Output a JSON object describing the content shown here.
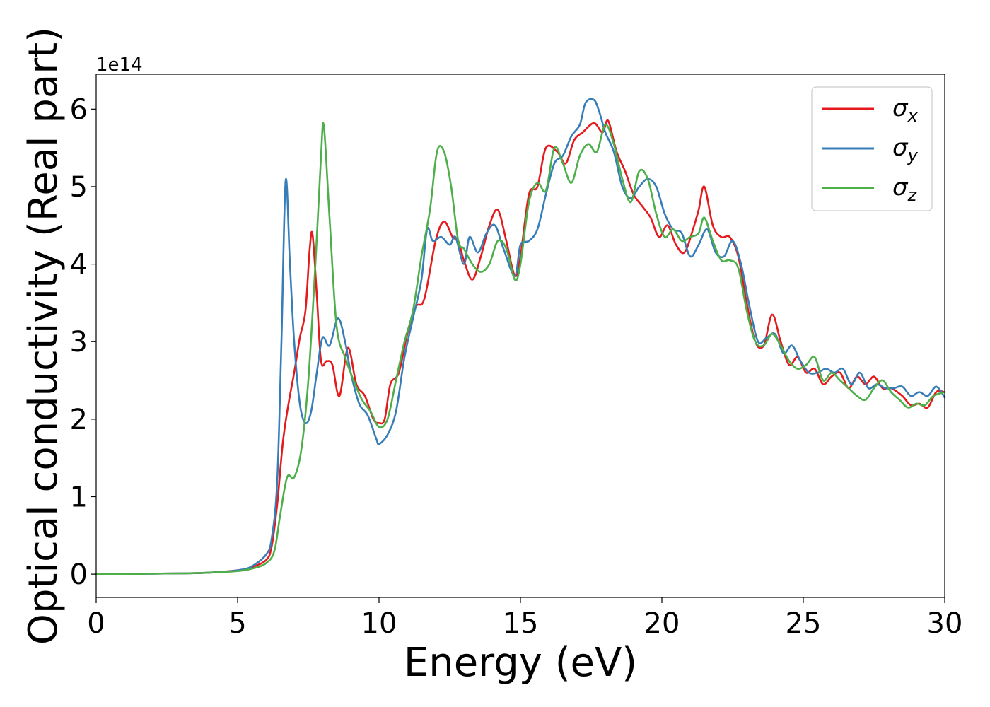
{
  "chart_data": {
    "type": "line",
    "xlabel": "Energy (eV)",
    "ylabel": "Optical conductivity (Real part)",
    "y_offset_label": "1e14",
    "xlim": [
      0,
      30
    ],
    "ylim": [
      -0.3,
      6.45
    ],
    "x_ticks": [
      0,
      5,
      10,
      15,
      20,
      25,
      30
    ],
    "x_tick_labels": [
      "0",
      "5",
      "10",
      "15",
      "20",
      "25",
      "30"
    ],
    "y_ticks": [
      0,
      1,
      2,
      3,
      4,
      5,
      6
    ],
    "y_tick_labels": [
      "0",
      "1",
      "2",
      "3",
      "4",
      "5",
      "6"
    ],
    "grid": false,
    "legend_position": "top-right",
    "series": [
      {
        "name": "σ",
        "subscript": "x",
        "color": "#e41a1c",
        "points": [
          [
            0,
            0
          ],
          [
            3,
            0.01
          ],
          [
            4,
            0.02
          ],
          [
            5,
            0.05
          ],
          [
            5.5,
            0.09
          ],
          [
            6,
            0.18
          ],
          [
            6.2,
            0.35
          ],
          [
            6.4,
            0.9
          ],
          [
            6.6,
            1.7
          ],
          [
            6.8,
            2.2
          ],
          [
            7.0,
            2.6
          ],
          [
            7.2,
            3.05
          ],
          [
            7.4,
            3.4
          ],
          [
            7.55,
            4.2
          ],
          [
            7.65,
            4.38
          ],
          [
            7.8,
            3.6
          ],
          [
            7.95,
            2.75
          ],
          [
            8.15,
            2.75
          ],
          [
            8.35,
            2.7
          ],
          [
            8.6,
            2.3
          ],
          [
            8.9,
            2.92
          ],
          [
            9.2,
            2.45
          ],
          [
            9.5,
            2.3
          ],
          [
            9.8,
            2.0
          ],
          [
            10.0,
            1.95
          ],
          [
            10.2,
            2.0
          ],
          [
            10.4,
            2.45
          ],
          [
            10.7,
            2.6
          ],
          [
            11.0,
            3.1
          ],
          [
            11.3,
            3.45
          ],
          [
            11.6,
            3.55
          ],
          [
            12.0,
            4.3
          ],
          [
            12.3,
            4.55
          ],
          [
            12.6,
            4.35
          ],
          [
            12.8,
            4.3
          ],
          [
            13.0,
            4.05
          ],
          [
            13.3,
            3.8
          ],
          [
            13.6,
            4.1
          ],
          [
            13.9,
            4.5
          ],
          [
            14.2,
            4.7
          ],
          [
            14.5,
            4.3
          ],
          [
            14.8,
            3.85
          ],
          [
            15.0,
            4.1
          ],
          [
            15.3,
            4.9
          ],
          [
            15.6,
            5.0
          ],
          [
            15.9,
            5.5
          ],
          [
            16.3,
            5.45
          ],
          [
            16.6,
            5.3
          ],
          [
            16.9,
            5.6
          ],
          [
            17.2,
            5.7
          ],
          [
            17.6,
            5.82
          ],
          [
            17.9,
            5.7
          ],
          [
            18.1,
            5.85
          ],
          [
            18.4,
            5.45
          ],
          [
            18.7,
            5.2
          ],
          [
            19.0,
            4.9
          ],
          [
            19.3,
            4.75
          ],
          [
            19.6,
            4.6
          ],
          [
            19.9,
            4.35
          ],
          [
            20.2,
            4.5
          ],
          [
            20.5,
            4.25
          ],
          [
            20.8,
            4.15
          ],
          [
            21.1,
            4.45
          ],
          [
            21.3,
            4.7
          ],
          [
            21.5,
            5.0
          ],
          [
            21.8,
            4.5
          ],
          [
            22.1,
            4.35
          ],
          [
            22.4,
            4.35
          ],
          [
            22.7,
            4.1
          ],
          [
            23.0,
            3.5
          ],
          [
            23.3,
            3.0
          ],
          [
            23.6,
            2.95
          ],
          [
            23.9,
            3.35
          ],
          [
            24.2,
            3.0
          ],
          [
            24.5,
            2.7
          ],
          [
            24.8,
            2.8
          ],
          [
            25.1,
            2.6
          ],
          [
            25.4,
            2.65
          ],
          [
            25.7,
            2.45
          ],
          [
            26.0,
            2.55
          ],
          [
            26.3,
            2.6
          ],
          [
            26.6,
            2.4
          ],
          [
            26.9,
            2.55
          ],
          [
            27.2,
            2.45
          ],
          [
            27.5,
            2.55
          ],
          [
            27.8,
            2.4
          ],
          [
            28.1,
            2.4
          ],
          [
            28.5,
            2.3
          ],
          [
            28.8,
            2.18
          ],
          [
            29.1,
            2.2
          ],
          [
            29.4,
            2.15
          ],
          [
            29.7,
            2.35
          ],
          [
            30.0,
            2.35
          ]
        ]
      },
      {
        "name": "σ",
        "subscript": "y",
        "color": "#377eb8",
        "points": [
          [
            0,
            0
          ],
          [
            3,
            0.01
          ],
          [
            4,
            0.02
          ],
          [
            5,
            0.05
          ],
          [
            5.5,
            0.1
          ],
          [
            6,
            0.25
          ],
          [
            6.2,
            0.45
          ],
          [
            6.4,
            1.2
          ],
          [
            6.55,
            3.0
          ],
          [
            6.7,
            5.08
          ],
          [
            6.85,
            4.0
          ],
          [
            7.0,
            3.0
          ],
          [
            7.2,
            2.2
          ],
          [
            7.4,
            1.95
          ],
          [
            7.6,
            2.1
          ],
          [
            7.8,
            2.6
          ],
          [
            8.0,
            3.05
          ],
          [
            8.25,
            2.95
          ],
          [
            8.55,
            3.3
          ],
          [
            8.8,
            3.0
          ],
          [
            9.0,
            2.6
          ],
          [
            9.3,
            2.2
          ],
          [
            9.6,
            2.05
          ],
          [
            9.9,
            1.75
          ],
          [
            10.0,
            1.68
          ],
          [
            10.3,
            1.8
          ],
          [
            10.6,
            2.1
          ],
          [
            10.9,
            2.8
          ],
          [
            11.2,
            3.3
          ],
          [
            11.5,
            3.8
          ],
          [
            11.7,
            4.45
          ],
          [
            11.9,
            4.3
          ],
          [
            12.2,
            4.35
          ],
          [
            12.5,
            4.25
          ],
          [
            12.7,
            4.35
          ],
          [
            13.0,
            4.0
          ],
          [
            13.2,
            4.35
          ],
          [
            13.5,
            4.15
          ],
          [
            13.8,
            4.4
          ],
          [
            14.1,
            4.5
          ],
          [
            14.4,
            4.2
          ],
          [
            14.8,
            3.85
          ],
          [
            15.0,
            4.25
          ],
          [
            15.3,
            4.3
          ],
          [
            15.6,
            4.45
          ],
          [
            15.9,
            4.9
          ],
          [
            16.2,
            5.3
          ],
          [
            16.5,
            5.4
          ],
          [
            16.8,
            5.65
          ],
          [
            17.1,
            5.8
          ],
          [
            17.3,
            6.08
          ],
          [
            17.6,
            6.12
          ],
          [
            17.8,
            5.95
          ],
          [
            18.0,
            5.7
          ],
          [
            18.3,
            5.45
          ],
          [
            18.6,
            5.0
          ],
          [
            18.9,
            4.85
          ],
          [
            19.2,
            5.0
          ],
          [
            19.5,
            5.1
          ],
          [
            19.8,
            5.0
          ],
          [
            20.1,
            4.65
          ],
          [
            20.4,
            4.45
          ],
          [
            20.7,
            4.4
          ],
          [
            21.0,
            4.1
          ],
          [
            21.3,
            4.25
          ],
          [
            21.6,
            4.45
          ],
          [
            21.9,
            4.15
          ],
          [
            22.2,
            4.1
          ],
          [
            22.5,
            4.3
          ],
          [
            22.8,
            4.0
          ],
          [
            23.1,
            3.45
          ],
          [
            23.4,
            3.0
          ],
          [
            23.7,
            3.05
          ],
          [
            24.0,
            3.1
          ],
          [
            24.3,
            2.85
          ],
          [
            24.6,
            2.95
          ],
          [
            24.9,
            2.75
          ],
          [
            25.2,
            2.6
          ],
          [
            25.5,
            2.6
          ],
          [
            25.8,
            2.65
          ],
          [
            26.1,
            2.6
          ],
          [
            26.4,
            2.65
          ],
          [
            26.7,
            2.45
          ],
          [
            27.0,
            2.6
          ],
          [
            27.3,
            2.4
          ],
          [
            27.6,
            2.45
          ],
          [
            27.9,
            2.4
          ],
          [
            28.2,
            2.4
          ],
          [
            28.5,
            2.42
          ],
          [
            28.8,
            2.3
          ],
          [
            29.1,
            2.35
          ],
          [
            29.4,
            2.3
          ],
          [
            29.7,
            2.42
          ],
          [
            30.0,
            2.28
          ]
        ]
      },
      {
        "name": "σ",
        "subscript": "z",
        "color": "#4daf4a",
        "points": [
          [
            0,
            0
          ],
          [
            3,
            0.01
          ],
          [
            4,
            0.02
          ],
          [
            5,
            0.04
          ],
          [
            5.5,
            0.07
          ],
          [
            6,
            0.14
          ],
          [
            6.3,
            0.3
          ],
          [
            6.5,
            0.75
          ],
          [
            6.75,
            1.25
          ],
          [
            7.0,
            1.25
          ],
          [
            7.25,
            1.6
          ],
          [
            7.5,
            2.5
          ],
          [
            7.75,
            4.0
          ],
          [
            7.95,
            5.4
          ],
          [
            8.05,
            5.78
          ],
          [
            8.25,
            4.6
          ],
          [
            8.5,
            3.2
          ],
          [
            8.8,
            2.8
          ],
          [
            9.1,
            2.5
          ],
          [
            9.4,
            2.25
          ],
          [
            9.7,
            2.1
          ],
          [
            10.0,
            1.9
          ],
          [
            10.3,
            2.0
          ],
          [
            10.6,
            2.5
          ],
          [
            10.9,
            3.0
          ],
          [
            11.2,
            3.4
          ],
          [
            11.5,
            4.1
          ],
          [
            11.8,
            4.7
          ],
          [
            12.05,
            5.45
          ],
          [
            12.3,
            5.45
          ],
          [
            12.55,
            5.0
          ],
          [
            12.8,
            4.3
          ],
          [
            13.0,
            4.2
          ],
          [
            13.3,
            4.0
          ],
          [
            13.6,
            3.9
          ],
          [
            13.9,
            4.0
          ],
          [
            14.2,
            4.3
          ],
          [
            14.5,
            4.2
          ],
          [
            14.8,
            3.8
          ],
          [
            15.0,
            4.0
          ],
          [
            15.3,
            4.8
          ],
          [
            15.6,
            5.05
          ],
          [
            15.9,
            4.95
          ],
          [
            16.2,
            5.5
          ],
          [
            16.5,
            5.3
          ],
          [
            16.8,
            5.05
          ],
          [
            17.1,
            5.4
          ],
          [
            17.4,
            5.55
          ],
          [
            17.7,
            5.45
          ],
          [
            18.0,
            5.8
          ],
          [
            18.3,
            5.55
          ],
          [
            18.6,
            5.1
          ],
          [
            18.9,
            4.8
          ],
          [
            19.2,
            5.2
          ],
          [
            19.5,
            5.1
          ],
          [
            19.8,
            4.65
          ],
          [
            20.1,
            4.35
          ],
          [
            20.4,
            4.45
          ],
          [
            20.7,
            4.3
          ],
          [
            21.0,
            4.35
          ],
          [
            21.3,
            4.4
          ],
          [
            21.5,
            4.6
          ],
          [
            21.8,
            4.3
          ],
          [
            22.1,
            4.05
          ],
          [
            22.4,
            4.05
          ],
          [
            22.7,
            3.95
          ],
          [
            23.0,
            3.4
          ],
          [
            23.3,
            3.0
          ],
          [
            23.6,
            2.95
          ],
          [
            23.9,
            3.1
          ],
          [
            24.2,
            2.95
          ],
          [
            24.5,
            2.75
          ],
          [
            24.8,
            2.65
          ],
          [
            25.1,
            2.7
          ],
          [
            25.4,
            2.8
          ],
          [
            25.7,
            2.5
          ],
          [
            26.0,
            2.6
          ],
          [
            26.3,
            2.5
          ],
          [
            26.6,
            2.4
          ],
          [
            26.9,
            2.3
          ],
          [
            27.2,
            2.25
          ],
          [
            27.5,
            2.4
          ],
          [
            27.8,
            2.5
          ],
          [
            28.1,
            2.35
          ],
          [
            28.4,
            2.25
          ],
          [
            28.7,
            2.15
          ],
          [
            29.0,
            2.2
          ],
          [
            29.3,
            2.18
          ],
          [
            29.6,
            2.3
          ],
          [
            30.0,
            2.35
          ]
        ]
      }
    ]
  }
}
